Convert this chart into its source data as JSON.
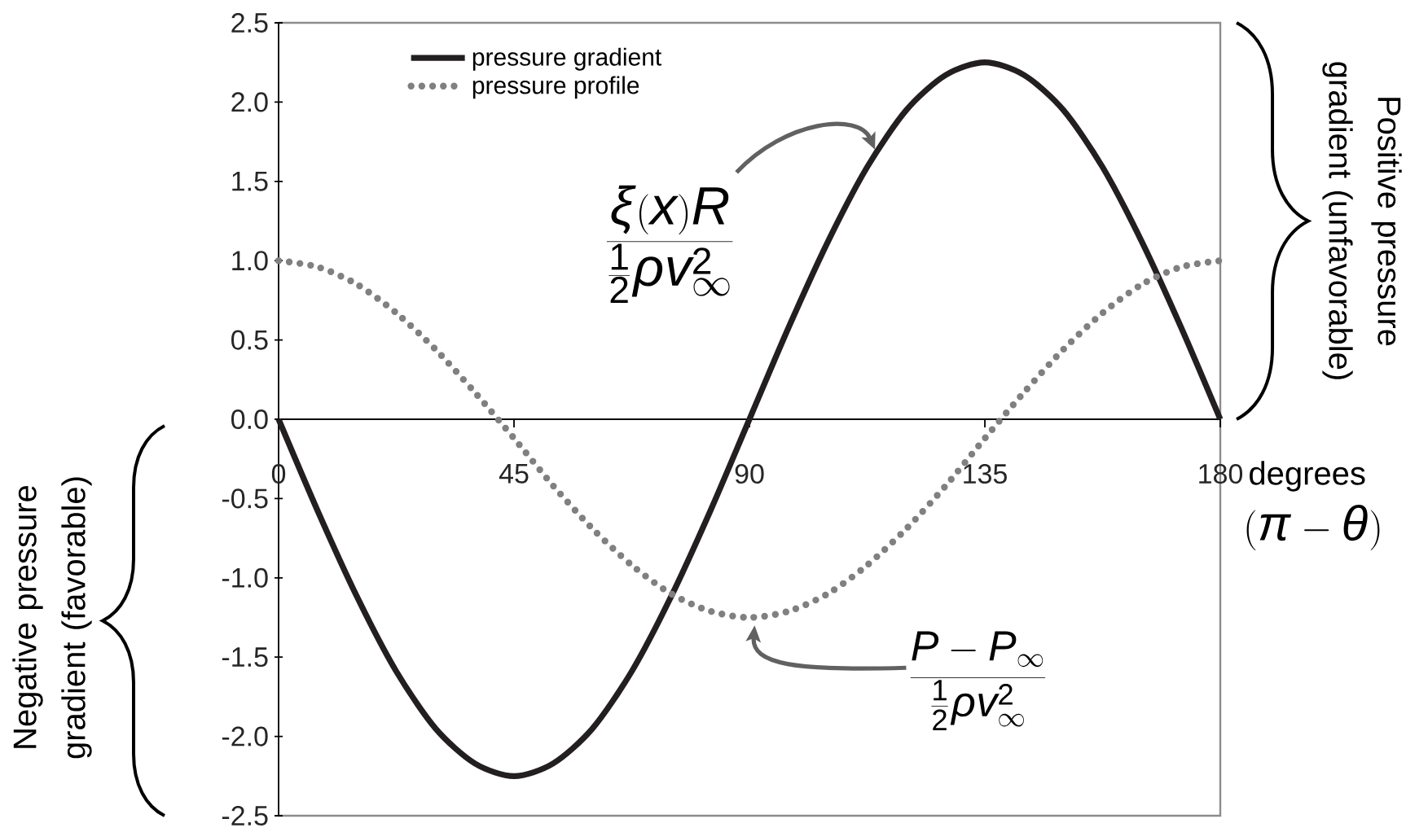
{
  "chart_data": {
    "type": "line",
    "x": [
      0,
      7.5,
      15,
      22.5,
      30,
      37.5,
      45,
      52.5,
      60,
      67.5,
      75,
      82.5,
      90,
      97.5,
      105,
      112.5,
      120,
      127.5,
      135,
      142.5,
      150,
      157.5,
      165,
      172.5,
      180
    ],
    "series": [
      {
        "name": "pressure gradient",
        "color": "#231f20",
        "line_style": "solid",
        "values": [
          0,
          -0.58,
          -1.12,
          -1.59,
          -1.95,
          -2.17,
          -2.25,
          -2.17,
          -1.95,
          -1.59,
          -1.12,
          -0.58,
          0,
          0.58,
          1.12,
          1.59,
          1.95,
          2.17,
          2.25,
          2.17,
          1.95,
          1.59,
          1.12,
          0.58,
          0
        ]
      },
      {
        "name": "pressure profile",
        "color": "#808080",
        "line_style": "dotted",
        "values": [
          1.0,
          0.96,
          0.85,
          0.67,
          0.44,
          0.17,
          -0.12,
          -0.42,
          -0.69,
          -0.92,
          -1.1,
          -1.21,
          -1.25,
          -1.21,
          -1.1,
          -0.92,
          -0.69,
          -0.42,
          -0.12,
          0.17,
          0.44,
          0.67,
          0.85,
          0.96,
          1.0
        ]
      }
    ],
    "xlabel": "degrees",
    "xlim": [
      0,
      180
    ],
    "xticks": [
      0,
      45,
      90,
      135,
      180
    ],
    "ylim": [
      -2.5,
      2.5
    ],
    "yticks": [
      -2.5,
      {
        "value": -2,
        "label": "-2.0"
      },
      -1.5,
      {
        "value": -1,
        "label": "-1.0"
      },
      -0.5,
      {
        "value": 0,
        "label": "0.0"
      },
      0.5,
      {
        "value": 1,
        "label": "1.0"
      },
      1.5,
      {
        "value": 2,
        "label": "2.0"
      },
      2.5
    ],
    "legend": "top left",
    "annotations": [
      {
        "text": "\\frac{\\xi(x)R}{\\frac{1}{2}\\rho v_{\\infty}^{2}}",
        "x": 114,
        "y": 1.7
      },
      {
        "text": "\\frac{P-P_{\\infty}}{\\frac{1}{2}\\rho v_{\\infty}^{2}}",
        "x": 91,
        "y": -1.3
      },
      "(\\pi-\\theta)",
      "Positive pressure gradient (unfavorable)",
      "Negative pressure gradient (favorable)"
    ]
  }
}
